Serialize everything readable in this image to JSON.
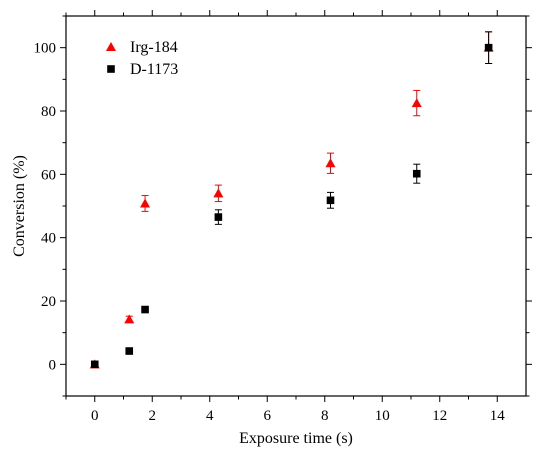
{
  "chart_data": {
    "type": "scatter",
    "title": "",
    "xlabel": "Exposure time (s)",
    "ylabel": "Conversion (%)",
    "xlim": [
      -1,
      15
    ],
    "ylim": [
      -10,
      110
    ],
    "x_ticks": [
      0,
      2,
      4,
      6,
      8,
      10,
      12,
      14
    ],
    "y_ticks": [
      0,
      20,
      40,
      60,
      80,
      100
    ],
    "grid": false,
    "legend_position": "top-left",
    "error_bars": true,
    "series": [
      {
        "name": "Irg-184",
        "marker": "triangle",
        "color": "#ff0000",
        "points": [
          {
            "x": 0,
            "y": 0,
            "err": 0.5
          },
          {
            "x": 1.2,
            "y": 14.2,
            "err": 1.0
          },
          {
            "x": 1.75,
            "y": 50.8,
            "err": 2.5
          },
          {
            "x": 4.3,
            "y": 54,
            "err": 2.6
          },
          {
            "x": 8.2,
            "y": 63.5,
            "err": 3.2
          },
          {
            "x": 11.2,
            "y": 82.5,
            "err": 4.0
          },
          {
            "x": 13.7,
            "y": 100,
            "err": 5.0
          }
        ]
      },
      {
        "name": "D-1173",
        "marker": "square",
        "color": "#000000",
        "points": [
          {
            "x": 0,
            "y": 0,
            "err": 0.4
          },
          {
            "x": 1.2,
            "y": 4.2,
            "err": 0.4
          },
          {
            "x": 1.75,
            "y": 17.3,
            "err": 0.5
          },
          {
            "x": 4.3,
            "y": 46.5,
            "err": 2.3
          },
          {
            "x": 8.2,
            "y": 51.8,
            "err": 2.5
          },
          {
            "x": 11.2,
            "y": 60.2,
            "err": 3.0
          },
          {
            "x": 13.7,
            "y": 100,
            "err": 5.0
          }
        ]
      }
    ]
  }
}
